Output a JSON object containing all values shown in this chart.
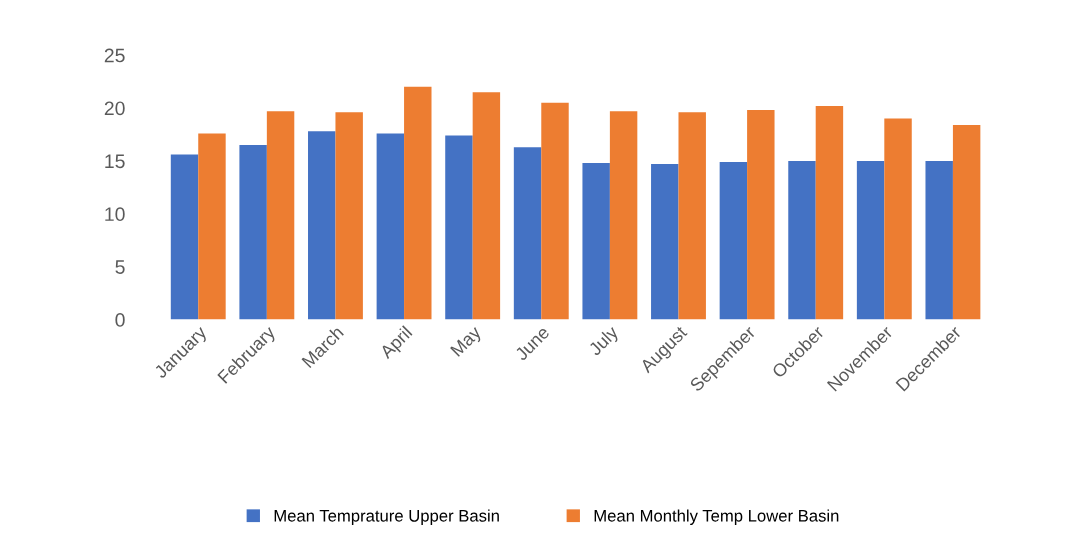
{
  "chart_data": {
    "type": "bar",
    "categories": [
      "January",
      "February",
      "March",
      "April",
      "May",
      "June",
      "July",
      "August",
      "Sepember",
      "October",
      "November",
      "December"
    ],
    "series": [
      {
        "name": "Mean Temprature Upper Basin",
        "color": "#4472c4",
        "values": [
          15.6,
          16.5,
          17.8,
          17.6,
          17.4,
          16.3,
          14.8,
          14.7,
          14.9,
          15.0,
          15.0,
          15.0
        ]
      },
      {
        "name": "Mean Monthly Temp Lower Basin",
        "color": "#ed7d31",
        "values": [
          17.6,
          19.7,
          19.6,
          22.0,
          21.5,
          20.5,
          19.7,
          19.6,
          19.8,
          20.2,
          19.0,
          18.4
        ]
      }
    ],
    "ylim": [
      0,
      25
    ],
    "yticks": [
      0,
      5,
      10,
      15,
      20,
      25
    ],
    "grid": false,
    "legend": "bottom"
  }
}
